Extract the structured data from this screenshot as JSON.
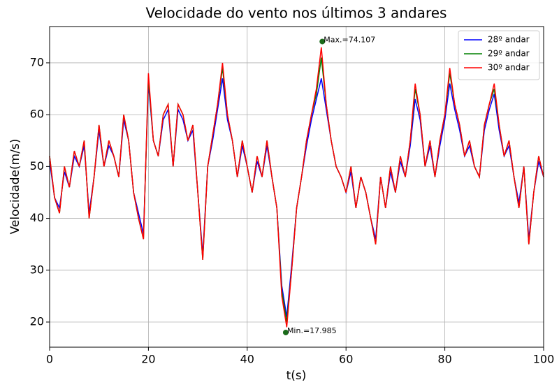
{
  "chart_data": {
    "type": "line",
    "title": "Velocidade do vento nos últimos 3 andares",
    "xlabel": "t(s)",
    "ylabel": "Velocidade(m/s)",
    "x": [
      0,
      1,
      2,
      3,
      4,
      5,
      6,
      7,
      8,
      9,
      10,
      11,
      12,
      13,
      14,
      15,
      16,
      17,
      18,
      19,
      20,
      21,
      22,
      23,
      24,
      25,
      26,
      27,
      28,
      29,
      30,
      31,
      32,
      33,
      34,
      35,
      36,
      37,
      38,
      39,
      40,
      41,
      42,
      43,
      44,
      45,
      46,
      47,
      48,
      49,
      50,
      51,
      52,
      53,
      54,
      55,
      56,
      57,
      58,
      59,
      60,
      61,
      62,
      63,
      64,
      65,
      66,
      67,
      68,
      69,
      70,
      71,
      72,
      73,
      74,
      75,
      76,
      77,
      78,
      79,
      80,
      81,
      82,
      83,
      84,
      85,
      86,
      87,
      88,
      89,
      90,
      91,
      92,
      93,
      94,
      95,
      96,
      97,
      98,
      99,
      100
    ],
    "series": [
      {
        "name": "28º andar",
        "color": "#0000ff",
        "values": [
          51,
          44,
          42,
          49,
          46,
          52,
          50,
          54,
          41,
          48,
          57,
          50,
          54,
          52,
          48,
          59,
          55,
          45,
          41,
          37,
          66,
          55,
          52,
          59,
          61,
          50,
          61,
          59,
          55,
          57,
          45,
          33,
          50,
          55,
          61,
          67,
          59,
          55,
          48,
          54,
          50,
          45,
          51,
          48,
          54,
          48,
          42,
          27,
          21,
          31,
          42,
          48,
          54,
          59,
          63,
          67,
          61,
          55,
          50,
          48,
          45,
          49,
          42,
          48,
          45,
          40,
          36,
          48,
          42,
          49,
          45,
          51,
          48,
          54,
          63,
          59,
          50,
          54,
          48,
          54,
          59,
          66,
          61,
          57,
          52,
          54,
          50,
          48,
          57,
          61,
          64,
          57,
          52,
          54,
          48,
          43,
          50,
          36,
          45,
          51,
          48
        ]
      },
      {
        "name": "29º andar",
        "color": "#008000",
        "values": [
          52,
          44,
          41,
          50,
          46,
          53,
          50,
          55,
          40,
          48,
          58,
          50,
          55,
          52,
          48,
          60,
          55,
          45,
          40,
          36,
          67,
          55,
          52,
          60,
          62,
          50,
          62,
          60,
          55,
          58,
          45,
          32,
          50,
          56,
          62,
          69,
          60,
          55,
          48,
          55,
          50,
          45,
          52,
          48,
          55,
          48,
          42,
          26,
          20,
          30,
          42,
          48,
          55,
          60,
          64,
          71,
          62,
          55,
          50,
          48,
          45,
          50,
          42,
          48,
          45,
          40,
          35,
          48,
          42,
          50,
          45,
          52,
          48,
          55,
          65,
          60,
          50,
          55,
          48,
          55,
          60,
          68,
          62,
          58,
          52,
          55,
          50,
          48,
          58,
          62,
          65,
          58,
          52,
          55,
          48,
          42,
          50,
          35,
          45,
          52,
          48
        ]
      },
      {
        "name": "30º andar",
        "color": "#ff0000",
        "values": [
          52,
          44,
          41,
          50,
          46,
          53,
          50,
          55,
          40,
          48,
          58,
          50,
          55,
          52,
          48,
          60,
          55,
          45,
          40,
          36,
          68,
          55,
          52,
          60,
          62,
          50,
          62,
          60,
          55,
          58,
          45,
          32,
          50,
          56,
          62,
          70,
          60,
          55,
          48,
          55,
          50,
          45,
          52,
          48,
          55,
          48,
          42,
          25,
          19,
          30,
          42,
          48,
          55,
          60,
          65,
          73,
          62,
          55,
          50,
          48,
          45,
          50,
          42,
          48,
          45,
          40,
          35,
          48,
          42,
          50,
          45,
          52,
          48,
          55,
          66,
          60,
          50,
          55,
          48,
          55,
          60,
          69,
          62,
          58,
          52,
          55,
          50,
          48,
          58,
          62,
          66,
          58,
          52,
          55,
          48,
          42,
          50,
          35,
          45,
          52,
          48
        ]
      }
    ],
    "annotations": [
      {
        "text": "Max.=74.107",
        "x": 55.2,
        "y": 74.107,
        "color": "#1a6b1a"
      },
      {
        "text": "Min.=17.985",
        "x": 47.8,
        "y": 17.985,
        "color": "#1a6b1a"
      }
    ],
    "xlim": [
      0,
      100
    ],
    "xticks": [
      0,
      20,
      40,
      60,
      80,
      100
    ],
    "ylim": [
      15.15,
      77
    ],
    "yticks": [
      20,
      30,
      40,
      50,
      60,
      70
    ],
    "grid": true,
    "legend": "upper right"
  }
}
